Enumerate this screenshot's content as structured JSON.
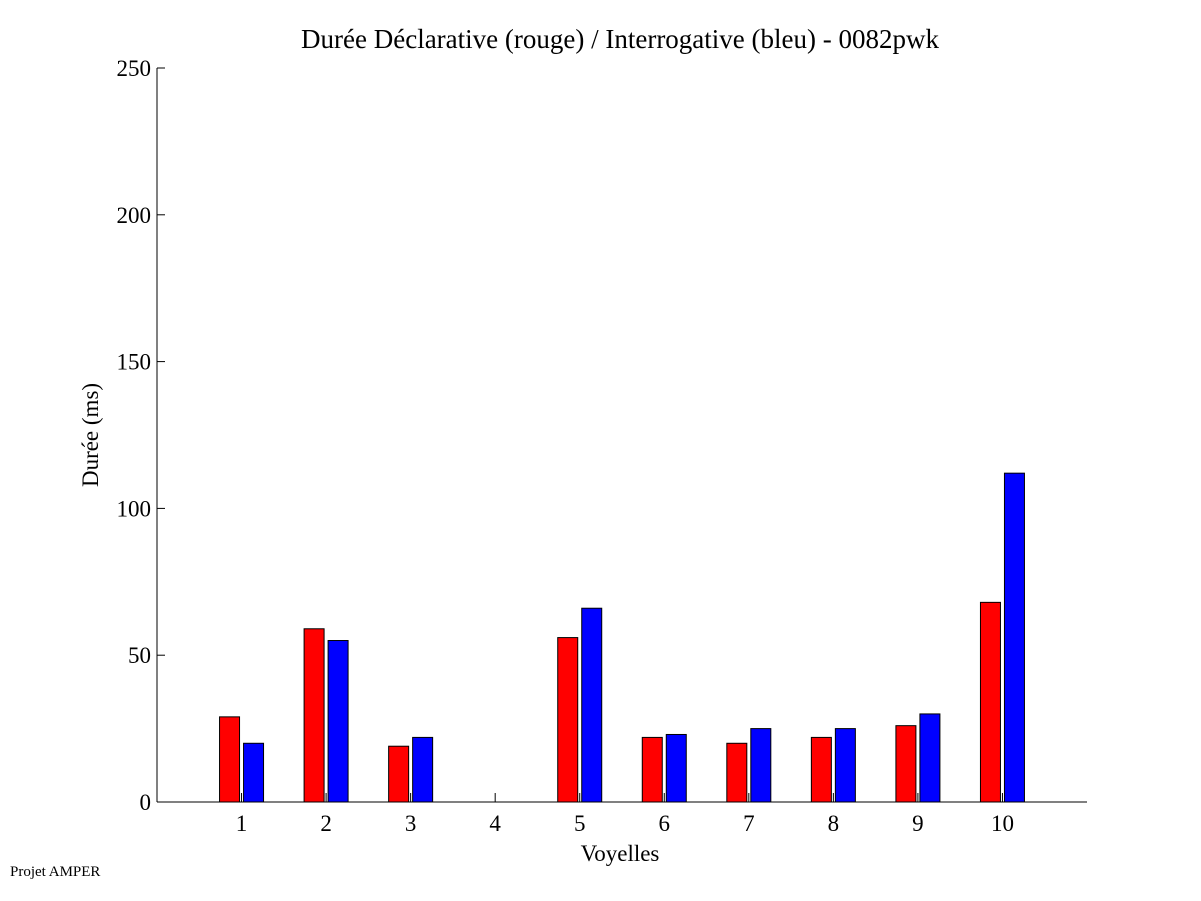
{
  "chart_data": {
    "type": "bar",
    "title": "Durée Déclarative (rouge) / Interrogative (bleu) - 0082pwk",
    "xlabel": "Voyelles",
    "ylabel": "Durée (ms)",
    "categories": [
      "1",
      "2",
      "3",
      "4",
      "5",
      "6",
      "7",
      "8",
      "9",
      "10"
    ],
    "ylim": [
      0,
      250
    ],
    "yticks": [
      "0",
      "50",
      "100",
      "150",
      "200",
      "250"
    ],
    "grid": false,
    "series": [
      {
        "color": "#ff0000",
        "values": [
          29,
          59,
          19,
          0,
          56,
          22,
          20,
          22,
          26,
          68
        ]
      },
      {
        "color": "#0000ff",
        "values": [
          20,
          55,
          22,
          0,
          66,
          23,
          25,
          25,
          30,
          112
        ]
      }
    ]
  },
  "footer": {
    "text": "Projet AMPER"
  }
}
